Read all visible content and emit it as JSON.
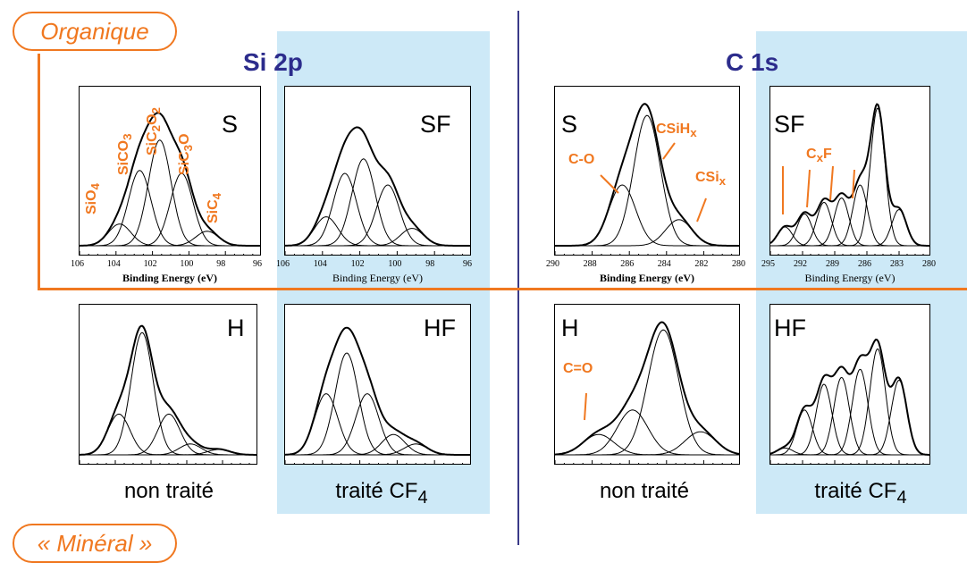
{
  "labels": {
    "organique": "Organique",
    "mineral": "« Minéral »",
    "si2p": "Si 2p",
    "c1s": "C 1s",
    "non_traite": "non traité",
    "traite": "traité CF",
    "traite_sub": "4"
  },
  "chart_data": [
    {
      "type": "line",
      "panel": "S",
      "title": "S",
      "element": "Si 2p",
      "xlabel": "Binding Energy (eV)",
      "xlim": [
        106,
        96
      ],
      "xticks": [
        "106",
        "104",
        "102",
        "100",
        "98",
        "96"
      ],
      "components": [
        "SiO4",
        "SiCO3",
        "SiC2O2",
        "SiC3O",
        "SiC4"
      ],
      "peaks": [
        {
          "center": 103.8,
          "height": 0.15
        },
        {
          "center": 102.7,
          "height": 0.52
        },
        {
          "center": 101.6,
          "height": 0.73
        },
        {
          "center": 100.4,
          "height": 0.5
        },
        {
          "center": 99.0,
          "height": 0.1
        }
      ]
    },
    {
      "type": "line",
      "panel": "SF",
      "title": "SF",
      "element": "Si 2p",
      "xlabel": "Binding Energy (eV)",
      "xlim": [
        106,
        96
      ],
      "xticks": [
        "106",
        "104",
        "102",
        "100",
        "98",
        "96"
      ],
      "peaks": [
        {
          "center": 103.8,
          "height": 0.2
        },
        {
          "center": 102.8,
          "height": 0.5
        },
        {
          "center": 101.8,
          "height": 0.6
        },
        {
          "center": 100.5,
          "height": 0.42
        },
        {
          "center": 99.2,
          "height": 0.12
        }
      ]
    },
    {
      "type": "line",
      "panel": "S",
      "title": "S",
      "element": "C 1s",
      "xlabel": "Binding Energy (eV)",
      "xlim": [
        290,
        280
      ],
      "xticks": [
        "290",
        "288",
        "286",
        "284",
        "282",
        "280"
      ],
      "components": [
        "C-O",
        "CSiHx",
        "CSix"
      ],
      "peaks": [
        {
          "center": 286.2,
          "height": 0.42
        },
        {
          "center": 284.8,
          "height": 0.9
        },
        {
          "center": 283.0,
          "height": 0.18
        }
      ]
    },
    {
      "type": "line",
      "panel": "SF",
      "title": "SF",
      "element": "C 1s",
      "xlabel": "Binding Energy (eV)",
      "xlim": [
        296,
        279.5
      ],
      "xticks": [
        "295",
        "292",
        "289",
        "286",
        "283",
        "280"
      ],
      "components": [
        "CxF"
      ],
      "peaks": [
        {
          "center": 294.5,
          "height": 0.13
        },
        {
          "center": 292.5,
          "height": 0.22
        },
        {
          "center": 290.5,
          "height": 0.3
        },
        {
          "center": 288.7,
          "height": 0.33
        },
        {
          "center": 286.8,
          "height": 0.42
        },
        {
          "center": 285.0,
          "height": 0.95
        },
        {
          "center": 282.8,
          "height": 0.25
        }
      ]
    },
    {
      "type": "line",
      "panel": "H",
      "title": "H",
      "element": "Si 2p",
      "peaks": [
        {
          "center": 103.8,
          "height": 0.3
        },
        {
          "center": 102.5,
          "height": 0.9
        },
        {
          "center": 101.0,
          "height": 0.3
        },
        {
          "center": 99.8,
          "height": 0.08
        },
        {
          "center": 98.2,
          "height": 0.04
        }
      ]
    },
    {
      "type": "line",
      "panel": "HF",
      "title": "HF",
      "element": "Si 2p",
      "peaks": [
        {
          "center": 103.8,
          "height": 0.45
        },
        {
          "center": 102.7,
          "height": 0.75
        },
        {
          "center": 101.6,
          "height": 0.45
        },
        {
          "center": 100.2,
          "height": 0.15
        },
        {
          "center": 99.0,
          "height": 0.08
        }
      ]
    },
    {
      "type": "line",
      "panel": "H",
      "title": "H",
      "element": "C 1s",
      "components": [
        "C=O"
      ],
      "peaks": [
        {
          "center": 288.8,
          "height": 0.15
        },
        {
          "center": 286.7,
          "height": 0.33
        },
        {
          "center": 284.8,
          "height": 0.92
        },
        {
          "center": 282.5,
          "height": 0.17
        }
      ]
    },
    {
      "type": "line",
      "panel": "HF",
      "title": "HF",
      "element": "C 1s",
      "peaks": [
        {
          "center": 294.5,
          "height": 0.05
        },
        {
          "center": 292.5,
          "height": 0.33
        },
        {
          "center": 290.5,
          "height": 0.52
        },
        {
          "center": 288.7,
          "height": 0.57
        },
        {
          "center": 286.8,
          "height": 0.63
        },
        {
          "center": 285.0,
          "height": 0.78
        },
        {
          "center": 282.8,
          "height": 0.55
        }
      ]
    }
  ],
  "annotations": {
    "sio4": "SiO4",
    "sico3": "SiCO3",
    "sic2o2": "SiC2O2",
    "sic3o": "SiC3O",
    "sic4": "SiC4",
    "co": "C-O",
    "csihx": "CSiHx",
    "csix": "CSix",
    "cxf": "CxF",
    "ceo": "C=O"
  },
  "colors": {
    "accent": "#f07820",
    "section": "#2c2c8c",
    "highlight": "#cde9f7"
  }
}
